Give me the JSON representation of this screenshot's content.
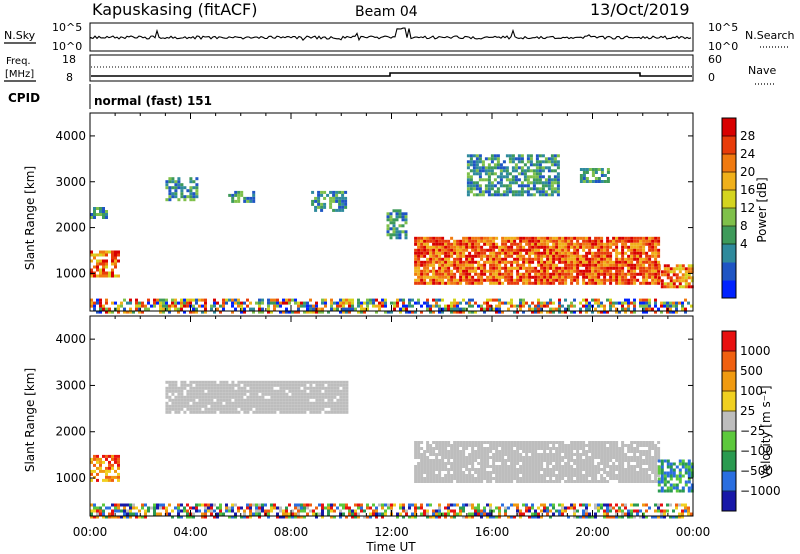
{
  "header": {
    "station": "Kapuskasing (fitACF)",
    "beam": "Beam 04",
    "date": "13/Oct/2019"
  },
  "noise_panel": {
    "left_label": "N.Sky",
    "left_ticks": [
      "10^5",
      "10^0"
    ],
    "right_ticks": [
      "10^5",
      "10^0"
    ],
    "right_label": "N.Search"
  },
  "freq_panel": {
    "left_label_line1": "Freq.",
    "left_label_line2": "[MHz]",
    "left_ticks": [
      "18",
      "8"
    ],
    "right_ticks": [
      "60",
      "0"
    ],
    "right_label": "Nave"
  },
  "cpid": {
    "label": "CPID",
    "value": "normal (fast) 151"
  },
  "x_axis": {
    "title": "Time UT",
    "ticks": [
      "00:00",
      "04:00",
      "08:00",
      "12:00",
      "16:00",
      "20:00",
      "00:00"
    ]
  },
  "chart_data": [
    {
      "type": "heatmap",
      "title": "Power",
      "ylabel": "Slant Range [km]",
      "yticks": [
        "4000",
        "3000",
        "2000",
        "1000"
      ],
      "ylim": [
        180,
        4500
      ],
      "xlim_hours": [
        0,
        24
      ],
      "colorbar": {
        "label": "Power [dB]",
        "ticks": [
          "28",
          "24",
          "20",
          "16",
          "12",
          "8",
          "4"
        ],
        "colors": [
          "#0022ff",
          "#1f55c4",
          "#2f8a9c",
          "#3e9a5a",
          "#7fc04a",
          "#d4d41e",
          "#f0b01a",
          "#f07a10",
          "#e83c0a",
          "#d80000"
        ]
      },
      "echo_regions": [
        {
          "t_start": 0.0,
          "t_end": 1.1,
          "r_start": 950,
          "r_end": 1500,
          "level": "high"
        },
        {
          "t_start": 0.0,
          "t_end": 0.6,
          "r_start": 2250,
          "r_end": 2450,
          "level": "low"
        },
        {
          "t_start": 3.0,
          "t_end": 4.2,
          "r_start": 2600,
          "r_end": 3100,
          "level": "low"
        },
        {
          "t_start": 5.5,
          "t_end": 6.5,
          "r_start": 2600,
          "r_end": 2800,
          "level": "low"
        },
        {
          "t_start": 8.8,
          "t_end": 10.2,
          "r_start": 2400,
          "r_end": 2800,
          "level": "low"
        },
        {
          "t_start": 11.8,
          "t_end": 12.6,
          "r_start": 1800,
          "r_end": 2400,
          "level": "low"
        },
        {
          "t_start": 12.9,
          "t_end": 22.6,
          "r_start": 800,
          "r_end": 1800,
          "level": "very-high"
        },
        {
          "t_start": 15.0,
          "t_end": 18.6,
          "r_start": 2700,
          "r_end": 3600,
          "level": "low"
        },
        {
          "t_start": 19.5,
          "t_end": 20.6,
          "r_start": 3000,
          "r_end": 3300,
          "level": "low"
        },
        {
          "t_start": 22.6,
          "t_end": 24.0,
          "r_start": 700,
          "r_end": 1200,
          "level": "high"
        },
        {
          "t_start": 0.0,
          "t_end": 24.0,
          "r_start": 180,
          "r_end": 450,
          "level": "mixed"
        }
      ]
    },
    {
      "type": "heatmap",
      "title": "Velocity",
      "ylabel": "Slant Range [km]",
      "yticks": [
        "4000",
        "3000",
        "2000",
        "1000"
      ],
      "ylim": [
        180,
        4500
      ],
      "xlim_hours": [
        0,
        24
      ],
      "colorbar": {
        "label": "Velocity [m s⁻¹]",
        "ticks": [
          "1000",
          "500",
          "100",
          "25",
          "−25",
          "−100",
          "−500",
          "−1000"
        ],
        "colors": [
          "#1818a8",
          "#2a6ee0",
          "#2a9a50",
          "#5cc83c",
          "#bdbdbd",
          "#f0d020",
          "#f09a10",
          "#f06010",
          "#e81010"
        ]
      },
      "echo_regions": [
        {
          "t_start": 0.0,
          "t_end": 1.1,
          "r_start": 950,
          "r_end": 1500,
          "level": "negative"
        },
        {
          "t_start": 3.0,
          "t_end": 10.2,
          "r_start": 2400,
          "r_end": 3100,
          "level": "ground"
        },
        {
          "t_start": 12.9,
          "t_end": 22.6,
          "r_start": 900,
          "r_end": 1800,
          "level": "ground"
        },
        {
          "t_start": 22.6,
          "t_end": 24.0,
          "r_start": 700,
          "r_end": 1400,
          "level": "positive"
        },
        {
          "t_start": 0.0,
          "t_end": 24.0,
          "r_start": 180,
          "r_end": 450,
          "level": "mixed"
        }
      ]
    }
  ]
}
